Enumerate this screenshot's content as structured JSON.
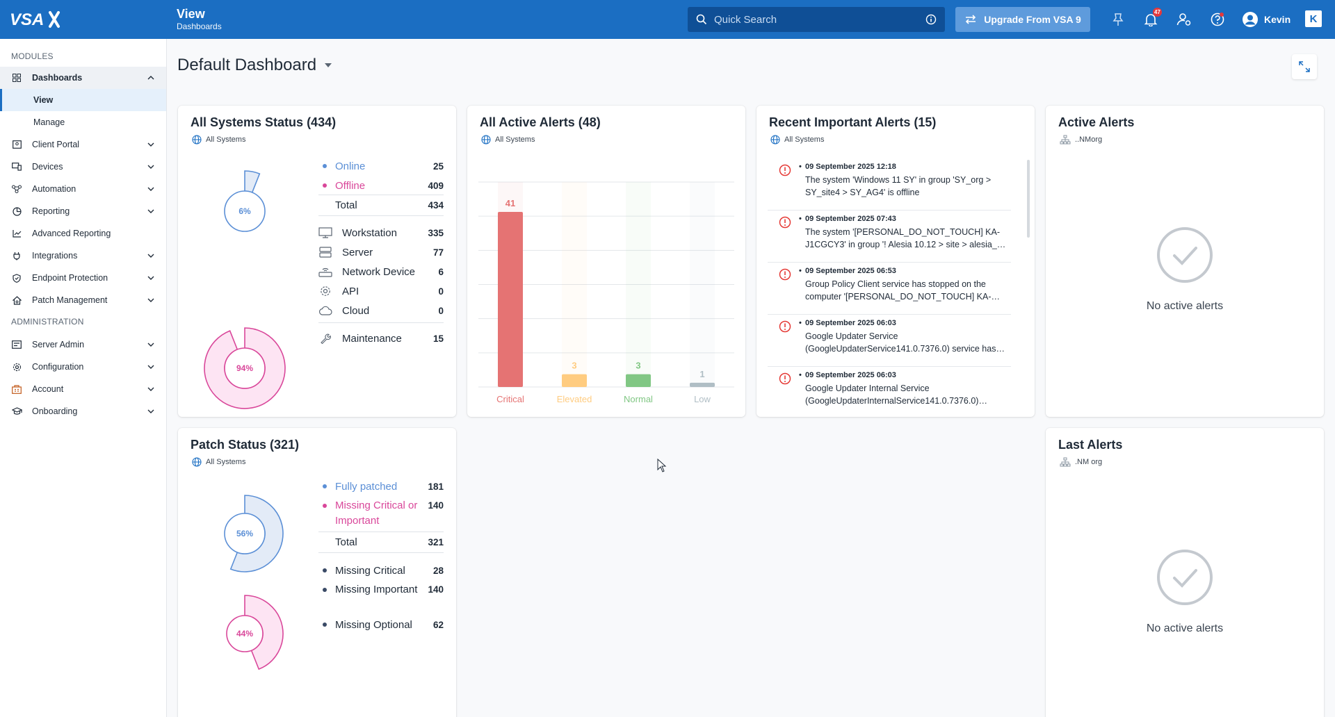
{
  "topbar": {
    "title": "View",
    "subtitle": "Dashboards",
    "search_placeholder": "Quick Search",
    "upgrade_label": "Upgrade From VSA 9",
    "notifications_count": "47",
    "user_name": "Kevin",
    "k_label": "K"
  },
  "sidebar": {
    "modules_label": "MODULES",
    "admin_label": "ADMINISTRATION",
    "dashboards": "Dashboards",
    "view": "View",
    "manage": "Manage",
    "client_portal": "Client Portal",
    "devices": "Devices",
    "automation": "Automation",
    "reporting": "Reporting",
    "advanced_reporting": "Advanced Reporting",
    "integrations": "Integrations",
    "endpoint_protection": "Endpoint Protection",
    "patch_management": "Patch Management",
    "server_admin": "Server Admin",
    "configuration": "Configuration",
    "account": "Account",
    "onboarding": "Onboarding"
  },
  "page": {
    "title": "Default Dashboard"
  },
  "systems_status": {
    "title": "All Systems Status (434)",
    "scope": "All Systems",
    "online_pct": "6%",
    "offline_pct": "94%",
    "online_fraction": 0.06,
    "offline_fraction": 0.94,
    "online_label": "Online",
    "online_value": "25",
    "offline_label": "Offline",
    "offline_value": "409",
    "total_label": "Total",
    "total_value": "434",
    "workstation_label": "Workstation",
    "workstation_value": "335",
    "server_label": "Server",
    "server_value": "77",
    "network_label": "Network Device",
    "network_value": "6",
    "api_label": "API",
    "api_value": "0",
    "cloud_label": "Cloud",
    "cloud_value": "0",
    "maintenance_label": "Maintenance",
    "maintenance_value": "15"
  },
  "active_alerts_chart": {
    "title": "All Active Alerts (48)",
    "scope": "All Systems"
  },
  "chart_data": {
    "type": "bar",
    "categories": [
      "Critical",
      "Elevated",
      "Normal",
      "Low"
    ],
    "values": [
      41,
      3,
      3,
      1
    ],
    "ylim": [
      0,
      48
    ],
    "grid": true,
    "colors": [
      "#e57373",
      "#ffcc80",
      "#81c784",
      "#b0bec5"
    ]
  },
  "recent_alerts": {
    "title": "Recent Important Alerts (15)",
    "scope": "All Systems",
    "items": [
      {
        "date": "09 September 2025 12:18",
        "message": "The system 'Windows 11 SY' in group 'SY_org > SY_site4 > SY_AG4' is offline"
      },
      {
        "date": "09 September 2025 07:43",
        "message": "The system '[PERSONAL_DO_NOT_TOUCH] KA-J1CGCY3' in group '! Alesia 10.12 > site > alesia_…"
      },
      {
        "date": "09 September 2025 06:53",
        "message": "Group Policy Client service has stopped on the computer '[PERSONAL_DO_NOT_TOUCH] KA-…"
      },
      {
        "date": "09 September 2025 06:03",
        "message": "Google Updater Service (GoogleUpdaterService141.0.7376.0) service has…"
      },
      {
        "date": "09 September 2025 06:03",
        "message": "Google Updater Internal Service (GoogleUpdaterInternalService141.0.7376.0)…"
      }
    ]
  },
  "active_alerts": {
    "title": "Active Alerts",
    "scope": "..NMorg",
    "empty_text": "No active alerts"
  },
  "patch_status": {
    "title": "Patch Status (321)",
    "scope": "All Systems",
    "patched_pct": "56%",
    "missing_pct": "44%",
    "patched_fraction": 0.56,
    "missing_fraction": 0.44,
    "fully_label": "Fully patched",
    "fully_value": "181",
    "missing_label": "Missing Critical or Important",
    "missing_value": "140",
    "total_label": "Total",
    "total_value": "321",
    "mc_label": "Missing Critical",
    "mc_value": "28",
    "mi_label": "Missing Important",
    "mi_value": "140",
    "mo_label": "Missing Optional",
    "mo_value": "62"
  },
  "last_alerts": {
    "title": "Last Alerts",
    "scope": ".NM org",
    "empty_text": "No active alerts"
  }
}
